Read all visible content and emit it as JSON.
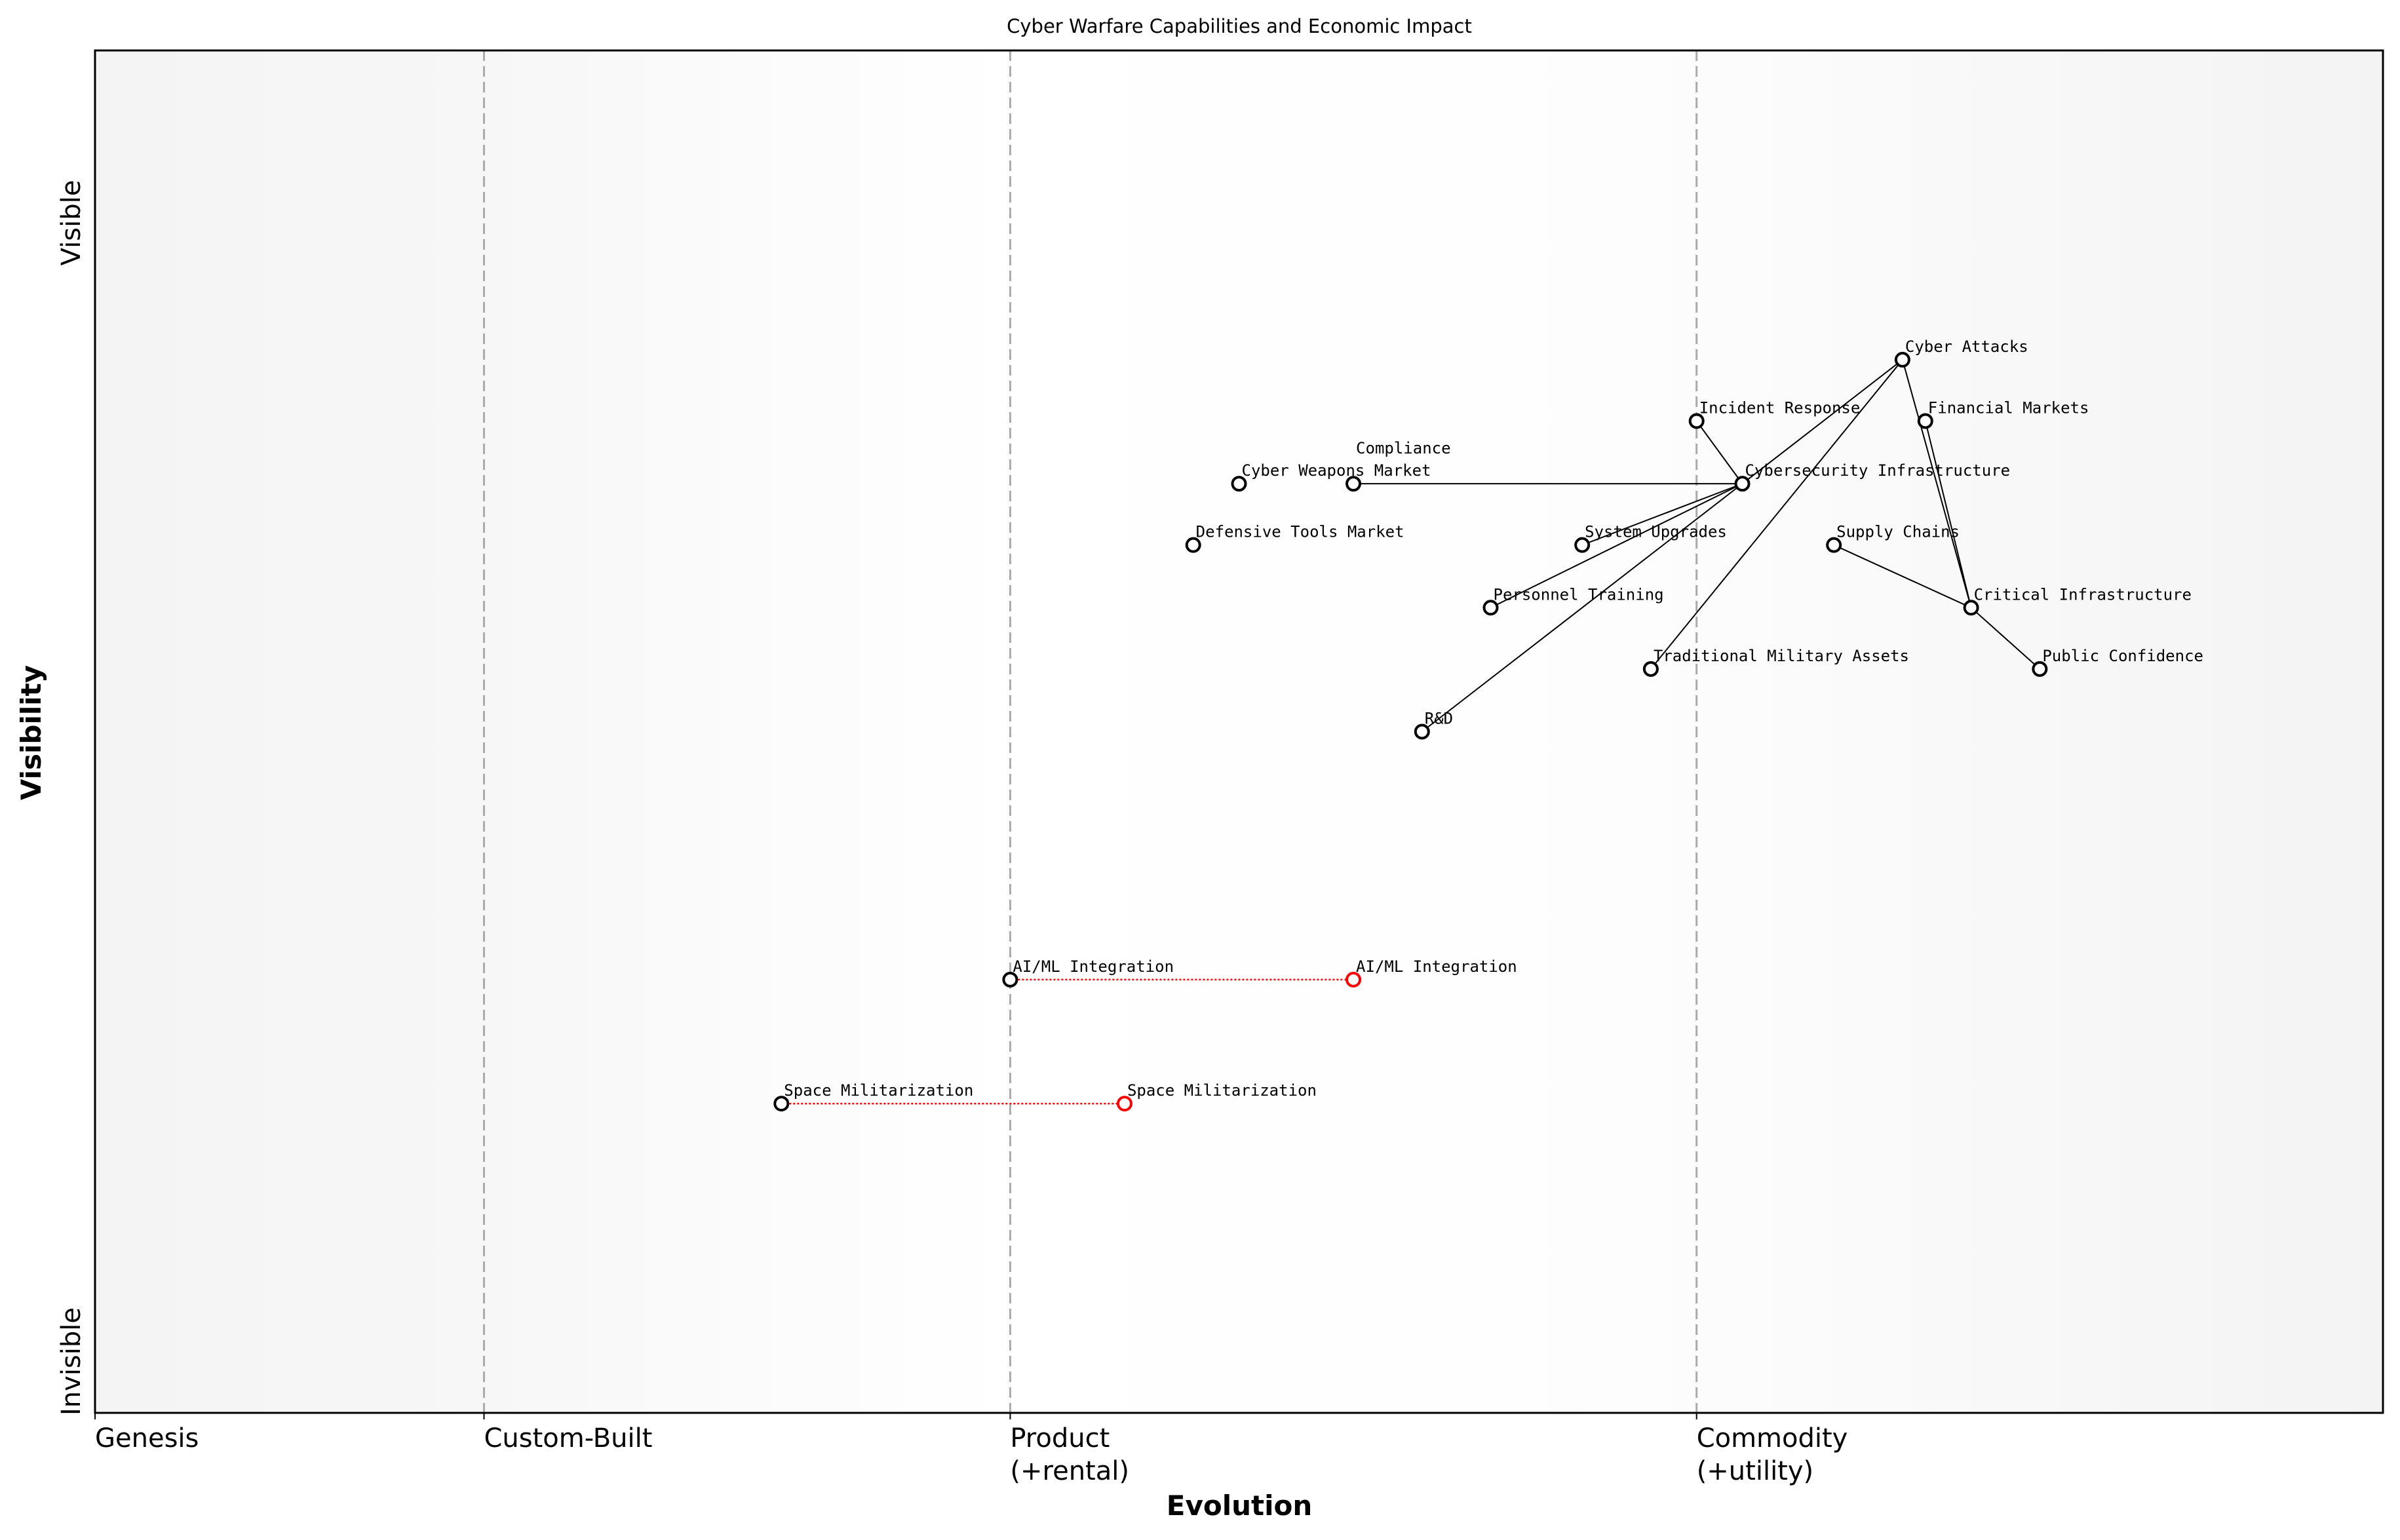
{
  "title": "Cyber Warfare Capabilities and Economic Impact",
  "x_axis": {
    "label": "Evolution",
    "stages": [
      {
        "name": "Genesis",
        "lines": [
          "Genesis"
        ],
        "at": 0.0
      },
      {
        "name": "Custom-Built",
        "lines": [
          "Custom-Built"
        ],
        "at": 0.17
      },
      {
        "name": "Product",
        "lines": [
          "Product",
          "(+rental)"
        ],
        "at": 0.4
      },
      {
        "name": "Commodity",
        "lines": [
          "Commodity",
          "(+utility)"
        ],
        "at": 0.7
      }
    ],
    "range": [
      0,
      1
    ]
  },
  "y_axis": {
    "label": "Visibility",
    "top_label": "Visible",
    "bottom_label": "Invisible",
    "range": [
      0,
      1
    ]
  },
  "colors": {
    "node": "#000000",
    "evolved": "#ff0000",
    "stage_line": "#aaaaaa",
    "link": "#000000"
  },
  "components": [
    {
      "name": "Cyber Attacks"
    },
    {
      "name": "Incident Response"
    },
    {
      "name": "Financial Markets"
    },
    {
      "name": "Cybersecurity Infrastructure"
    },
    {
      "name": "Cyber Weapons Market"
    },
    {
      "name": "Compliance"
    },
    {
      "name": "Defensive Tools Market"
    },
    {
      "name": "System Upgrades"
    },
    {
      "name": "Supply Chains"
    },
    {
      "name": "Personnel Training"
    },
    {
      "name": "Critical Infrastructure"
    },
    {
      "name": "Traditional Military Assets"
    },
    {
      "name": "Public Confidence"
    },
    {
      "name": "R&D"
    },
    {
      "name": "AI/ML Integration"
    },
    {
      "name": "Space Militarization"
    }
  ],
  "evolutions": [
    {
      "name": "AI/ML Integration",
      "from": 0.4,
      "to": 0.55,
      "y": 0.318
    },
    {
      "name": "Space Militarization",
      "from": 0.3,
      "to": 0.45,
      "y": 0.227
    }
  ],
  "links": [
    [
      "Cyber Attacks",
      "Cybersecurity Infrastructure"
    ],
    [
      "Cyber Attacks",
      "Traditional Military Assets"
    ],
    [
      "Cyber Attacks",
      "Critical Infrastructure"
    ],
    [
      "Financial Markets",
      "Critical Infrastructure"
    ],
    [
      "Supply Chains",
      "Critical Infrastructure"
    ],
    [
      "Critical Infrastructure",
      "Public Confidence"
    ],
    [
      "Incident Response",
      "Cybersecurity Infrastructure"
    ],
    [
      "Compliance",
      "Cybersecurity Infrastructure"
    ],
    [
      "System Upgrades",
      "Cybersecurity Infrastructure"
    ],
    [
      "Personnel Training",
      "Cybersecurity Infrastructure"
    ],
    [
      "R&D",
      "Cybersecurity Infrastructure"
    ]
  ]
}
